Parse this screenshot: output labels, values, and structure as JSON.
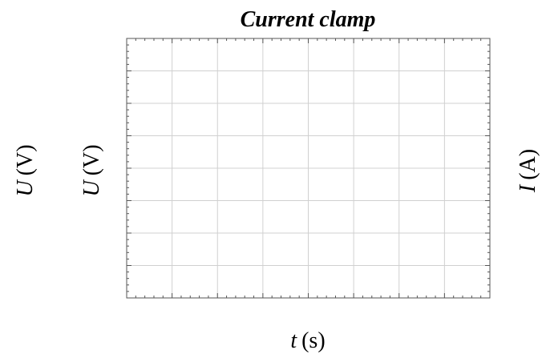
{
  "chart_data": {
    "type": "line",
    "title": "Current clamp",
    "xlabel": {
      "symbol": "t",
      "unit": "(s)"
    },
    "ylabel_left_outer": {
      "symbol": "U",
      "unit": "(V)"
    },
    "ylabel_left_inner": {
      "symbol": "U",
      "unit": "(V)"
    },
    "ylabel_right": {
      "symbol": "I",
      "unit": "(A)"
    },
    "x_major_divisions": 8,
    "y_major_divisions": 8,
    "minor_per_major": 5,
    "grid": true,
    "tick_labels_shown": false,
    "series": []
  },
  "colors": {
    "grid": "#d0d0d0",
    "frame": "#555555",
    "text": "#1a1a1a"
  }
}
